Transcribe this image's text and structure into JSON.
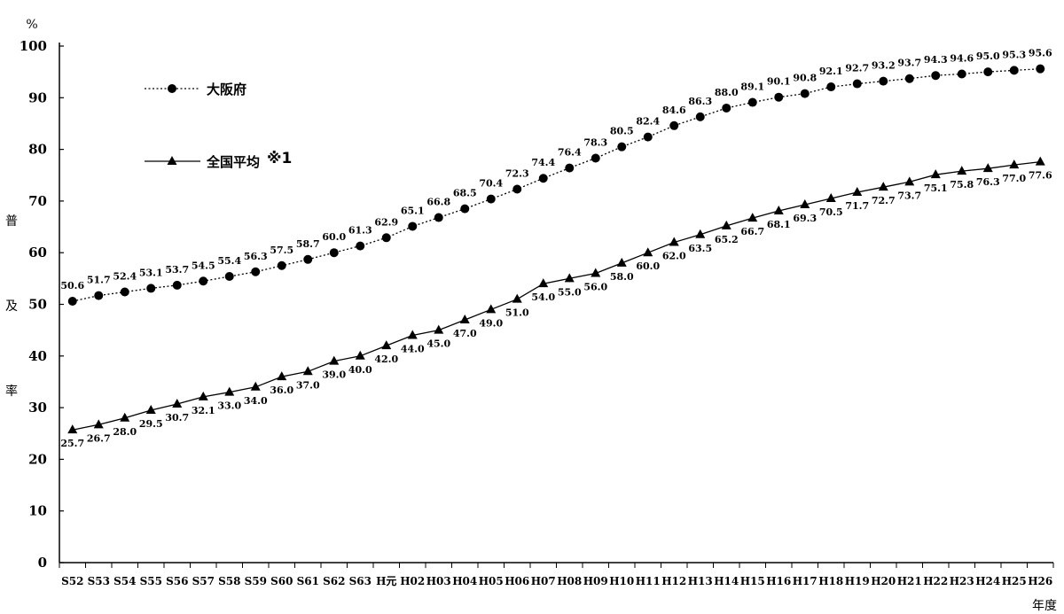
{
  "chart_data": {
    "type": "line",
    "title": "",
    "unit_label": "%",
    "ylabel": "普及率",
    "ylabel_chars": [
      "普",
      "及",
      "率"
    ],
    "xlabel": "年度",
    "ylim": [
      0,
      100
    ],
    "yticks": [
      0,
      10,
      20,
      30,
      40,
      50,
      60,
      70,
      80,
      90,
      100
    ],
    "grid": false,
    "legend_placement": "top-left",
    "categories": [
      "S52",
      "S53",
      "S54",
      "S55",
      "S56",
      "S57",
      "S58",
      "S59",
      "S60",
      "S61",
      "S62",
      "S63",
      "H元",
      "H02",
      "H03",
      "H04",
      "H05",
      "H06",
      "H07",
      "H08",
      "H09",
      "H10",
      "H11",
      "H12",
      "H13",
      "H14",
      "H15",
      "H16",
      "H17",
      "H18",
      "H19",
      "H20",
      "H21",
      "H22",
      "H23",
      "H24",
      "H25",
      "H26"
    ],
    "series": [
      {
        "name": "大阪府",
        "marker": "circle",
        "line_style": "dotted",
        "color": "#000000",
        "values": [
          50.6,
          51.7,
          52.4,
          53.1,
          53.7,
          54.5,
          55.4,
          56.3,
          57.5,
          58.7,
          60.0,
          61.3,
          62.9,
          65.1,
          66.8,
          68.5,
          70.4,
          72.3,
          74.4,
          76.4,
          78.3,
          80.5,
          82.4,
          84.6,
          86.3,
          88.0,
          89.1,
          90.1,
          90.8,
          92.1,
          92.7,
          93.2,
          93.7,
          94.3,
          94.6,
          95.0,
          95.3,
          95.6
        ],
        "labels": [
          "50.6",
          "51.7",
          "52.4",
          "53.1",
          "53.7",
          "54.5",
          "55.4",
          "56.3",
          "57.5",
          "58.7",
          "60.0",
          "61.3",
          "62.9",
          "65.1",
          "66.8",
          "68.5",
          "70.4",
          "72.3",
          "74.4",
          "76.4",
          "78.3",
          "80.5",
          "82.4",
          "84.6",
          "86.3",
          "88.0",
          "89.1",
          "90.1",
          "90.8",
          "92.1",
          "92.7",
          "93.2",
          "93.7",
          "94.3",
          "94.6",
          "95.0",
          "95.3",
          "95.6"
        ]
      },
      {
        "name": "全国平均",
        "note": "※1",
        "marker": "triangle",
        "line_style": "solid",
        "color": "#000000",
        "values": [
          25.7,
          26.7,
          28.0,
          29.5,
          30.7,
          32.1,
          33.0,
          34.0,
          36.0,
          37.0,
          39.0,
          40.0,
          42.0,
          44.0,
          45.0,
          47.0,
          49.0,
          51.0,
          54.0,
          55.0,
          56.0,
          58.0,
          60.0,
          62.0,
          63.5,
          65.2,
          66.7,
          68.1,
          69.3,
          70.5,
          71.7,
          72.7,
          73.7,
          75.1,
          75.8,
          76.3,
          77.0,
          77.6
        ],
        "labels": [
          "25.7",
          "26.7",
          "28.0",
          "29.5",
          "30.7",
          "32.1",
          "33.0",
          "34.0",
          "36.0",
          "37.0",
          "39.0",
          "40.0",
          "42.0",
          "44.0",
          "45.0",
          "47.0",
          "49.0",
          "51.0",
          "54.0",
          "55.0",
          "56.0",
          "58.0",
          "60.0",
          "62.0",
          "63.5",
          "65.2",
          "66.7",
          "68.1",
          "69.3",
          "70.5",
          "71.7",
          "72.7",
          "73.7",
          "75.1",
          "75.8",
          "76.3",
          "77.0",
          "77.6"
        ]
      }
    ]
  }
}
